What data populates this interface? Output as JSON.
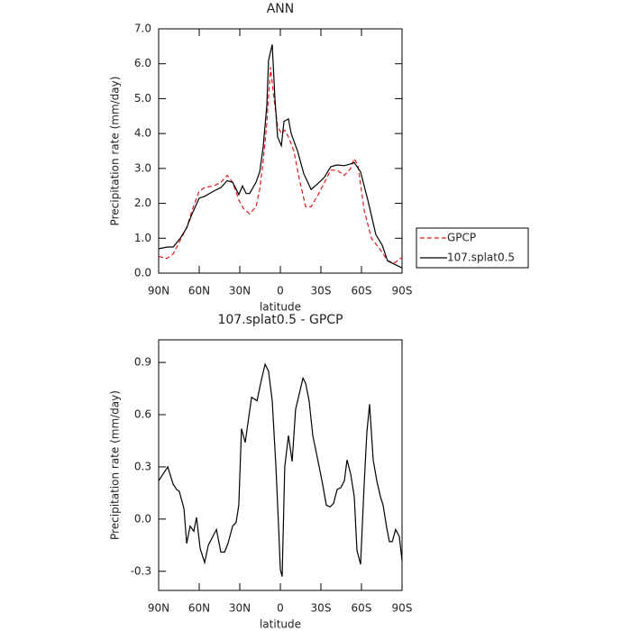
{
  "chart_data": [
    {
      "type": "line",
      "title": "ANN",
      "xlabel": "latitude",
      "ylabel": "Precipitation rate (mm/day)",
      "xlim": [
        90,
        -90
      ],
      "xticks": [
        {
          "value": 90,
          "label": "90N"
        },
        {
          "value": 60,
          "label": "60N"
        },
        {
          "value": 30,
          "label": "30N"
        },
        0,
        {
          "value": -30,
          "label": "30S"
        },
        {
          "value": -60,
          "label": "60S"
        },
        {
          "value": -90,
          "label": "90S"
        }
      ],
      "ylim": [
        0,
        7
      ],
      "yticks": [
        {
          "value": 0,
          "label": "0.0"
        },
        {
          "value": 1,
          "label": "1.0"
        },
        {
          "value": 2,
          "label": "2.0"
        },
        {
          "value": 3,
          "label": "3.0"
        },
        {
          "value": 4,
          "label": "4.0"
        },
        {
          "value": 5,
          "label": "5.0"
        },
        {
          "value": 6,
          "label": "6.0"
        },
        {
          "value": 7,
          "label": "7.0"
        }
      ],
      "legend": "right",
      "series": [
        {
          "name": "GPCP",
          "color": "#e41a1c",
          "dash": true,
          "x": [
            90,
            84,
            79.3,
            75.3,
            69.3,
            65.3,
            60,
            56,
            49.3,
            44,
            39.3,
            35.3,
            30.7,
            27.3,
            22.7,
            18,
            15.3,
            12.7,
            10,
            7.3,
            4.7,
            2,
            -0.7,
            -3.3,
            -6,
            -10,
            -14,
            -18.7,
            -22.7,
            -27.3,
            -32.7,
            -37.3,
            -42,
            -47.3,
            -52,
            -54.7,
            -57.3,
            -62,
            -67.3,
            -71.3,
            -75.3,
            -79.3,
            -84.7,
            -90
          ],
          "values": [
            0.48,
            0.42,
            0.55,
            0.85,
            1.3,
            1.8,
            2.35,
            2.45,
            2.5,
            2.6,
            2.8,
            2.6,
            2.1,
            1.85,
            1.7,
            1.9,
            2.4,
            3.2,
            4.3,
            5.9,
            5.0,
            4.2,
            4.0,
            4.1,
            3.9,
            3.5,
            2.7,
            1.9,
            1.9,
            2.2,
            2.6,
            2.95,
            2.95,
            2.8,
            3.0,
            3.28,
            3.1,
            1.8,
            1.0,
            0.8,
            0.6,
            0.35,
            0.3,
            0.45
          ]
        },
        {
          "name": "107.splat0.5",
          "color": "#000000",
          "dash": false,
          "x": [
            90,
            83.3,
            79.3,
            74,
            69.3,
            65.3,
            60,
            56,
            49.3,
            44,
            39.3,
            35.3,
            30.7,
            28,
            25.3,
            22.7,
            18,
            15.3,
            12.7,
            10,
            8.7,
            6,
            4,
            2,
            -0.7,
            -2.7,
            -6,
            -8,
            -12.7,
            -17.3,
            -22.7,
            -27.3,
            -32.7,
            -37.3,
            -42,
            -47.3,
            -52,
            -54.7,
            -59.3,
            -64.7,
            -70.7,
            -75.3,
            -79.3,
            -84.7,
            -90
          ],
          "values": [
            0.7,
            0.75,
            0.75,
            1.0,
            1.3,
            1.7,
            2.15,
            2.2,
            2.35,
            2.45,
            2.65,
            2.6,
            2.25,
            2.5,
            2.28,
            2.28,
            2.6,
            2.9,
            3.6,
            4.8,
            6.1,
            6.55,
            5.0,
            3.9,
            3.65,
            4.35,
            4.42,
            4.0,
            3.5,
            2.85,
            2.4,
            2.55,
            2.75,
            3.05,
            3.1,
            3.08,
            3.13,
            3.17,
            2.9,
            2.1,
            1.1,
            0.8,
            0.35,
            0.25,
            0.15
          ]
        }
      ]
    },
    {
      "type": "line",
      "title": "107.splat0.5 - GPCP",
      "xlabel": "latitude",
      "ylabel": "Precipitation rate (mm/day)",
      "xlim": [
        90,
        -90
      ],
      "xticks": [
        {
          "value": 90,
          "label": "90N"
        },
        {
          "value": 60,
          "label": "60N"
        },
        {
          "value": 30,
          "label": "30N"
        },
        0,
        {
          "value": -30,
          "label": "30S"
        },
        {
          "value": -60,
          "label": "60S"
        },
        {
          "value": -90,
          "label": "90S"
        }
      ],
      "ylim": [
        -0.41,
        1.03
      ],
      "yticks": [
        -0.3,
        {
          "value": 0,
          "label": "0.0"
        },
        0.3,
        0.6,
        0.9
      ],
      "series": [
        {
          "color": "#000000",
          "dash": false,
          "x": [
            90,
            83.3,
            79.3,
            76.7,
            74.7,
            71.3,
            69.3,
            66.7,
            64,
            62,
            59.3,
            56,
            53.3,
            47.3,
            44,
            41.3,
            38.7,
            35.3,
            32.7,
            30.7,
            28.7,
            26,
            21.3,
            17.3,
            14,
            11.3,
            8.7,
            6,
            3.3,
            1.3,
            0,
            -1.3,
            -3.3,
            -6,
            -8.7,
            -11.3,
            -16.7,
            -18.7,
            -21.3,
            -24,
            -28.7,
            -31.3,
            -34,
            -36.7,
            -39.3,
            -42,
            -44.7,
            -47.3,
            -49.3,
            -52,
            -54.7,
            -56.7,
            -59.3,
            -62,
            -64,
            -66,
            -68.7,
            -71.3,
            -74,
            -76,
            -78.7,
            -80.7,
            -82.7,
            -85.3,
            -88,
            -90
          ],
          "values": [
            0.22,
            0.3,
            0.2,
            0.17,
            0.16,
            0.06,
            -0.14,
            -0.04,
            -0.07,
            0.01,
            -0.17,
            -0.25,
            -0.15,
            -0.06,
            -0.19,
            -0.19,
            -0.14,
            -0.04,
            -0.02,
            0.08,
            0.52,
            0.44,
            0.7,
            0.68,
            0.8,
            0.89,
            0.85,
            0.68,
            0.3,
            -0.05,
            -0.29,
            -0.33,
            0.3,
            0.48,
            0.33,
            0.63,
            0.81,
            0.78,
            0.68,
            0.48,
            0.3,
            0.2,
            0.08,
            0.07,
            0.09,
            0.17,
            0.18,
            0.22,
            0.34,
            0.26,
            0.13,
            -0.18,
            -0.26,
            0.2,
            0.5,
            0.66,
            0.34,
            0.22,
            0.13,
            0.08,
            -0.05,
            -0.13,
            -0.13,
            -0.06,
            -0.1,
            -0.24
          ]
        }
      ]
    }
  ]
}
